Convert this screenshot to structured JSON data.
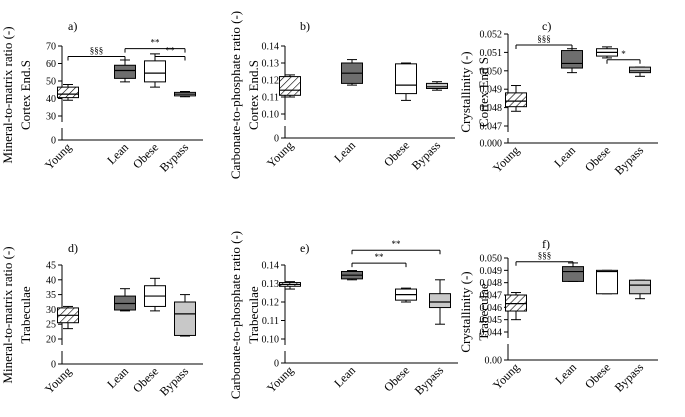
{
  "chart_data": [
    {
      "panel": "a)",
      "type": "boxplot",
      "ylabel": [
        "Mineral-to-matrix ratio (-)",
        "Cortex End.S"
      ],
      "categories": [
        "Young",
        "Lean",
        "Obese",
        "Bypass"
      ],
      "ylim": [
        0,
        70
      ],
      "break": [
        0,
        30
      ],
      "yticks": [
        0,
        30,
        40,
        50,
        60,
        70
      ],
      "yticklabels": [
        "0",
        "30",
        "40",
        "50",
        "60",
        "70"
      ],
      "boxes": [
        {
          "min": 39,
          "q1": 40.5,
          "median": 42.5,
          "q3": 46.5,
          "max": 48,
          "fill": "hatch"
        },
        {
          "min": 49.5,
          "q1": 51.5,
          "median": 56,
          "q3": 59,
          "max": 62,
          "fill": "dark"
        },
        {
          "min": 46.5,
          "q1": 49.5,
          "median": 54.5,
          "q3": 61.5,
          "max": 65.5,
          "fill": "white"
        },
        {
          "min": 41,
          "q1": 41.5,
          "median": 42.5,
          "q3": 43.5,
          "max": 44,
          "fill": "light"
        }
      ],
      "brackets": [
        {
          "from": 0,
          "to": 1,
          "label": "§§§",
          "at": 64
        },
        {
          "from": 1,
          "to": 3,
          "label": "**",
          "at": 68.5
        },
        {
          "from": 2,
          "to": 3,
          "label": "**",
          "at": 64
        }
      ]
    },
    {
      "panel": "b)",
      "type": "boxplot",
      "ylabel": [
        "Carbonate-to-phosphate ratio (-)",
        "Cortex End.S"
      ],
      "categories": [
        "Young",
        "Lean",
        "Obese",
        "Bypass"
      ],
      "ylim": [
        0,
        0.14
      ],
      "break": [
        0,
        0.1
      ],
      "yticks": [
        0,
        0.1,
        0.11,
        0.12,
        0.13,
        0.14
      ],
      "yticklabels": [
        "0",
        "0.10",
        "0.11",
        "0.12",
        "0.13",
        "0.14"
      ],
      "boxes": [
        {
          "min": 0.11,
          "q1": 0.111,
          "median": 0.114,
          "q3": 0.122,
          "max": 0.123,
          "fill": "hatch"
        },
        {
          "min": 0.117,
          "q1": 0.118,
          "median": 0.124,
          "q3": 0.13,
          "max": 0.132,
          "fill": "dark"
        },
        {
          "min": 0.108,
          "q1": 0.112,
          "median": 0.117,
          "q3": 0.1295,
          "max": 0.13,
          "fill": "white"
        },
        {
          "min": 0.114,
          "q1": 0.115,
          "median": 0.116,
          "q3": 0.118,
          "max": 0.119,
          "fill": "light"
        }
      ],
      "brackets": []
    },
    {
      "panel": "c)",
      "type": "boxplot",
      "ylabel": [
        "Crystallinity (-)",
        "Cortex End S"
      ],
      "categories": [
        "Young",
        "Lean",
        "Obese",
        "Bypass"
      ],
      "ylim": [
        0,
        0.052
      ],
      "break": [
        0,
        0.047
      ],
      "yticks": [
        0,
        0.047,
        0.048,
        0.049,
        0.05,
        0.051,
        0.052
      ],
      "yticklabels": [
        "0.000",
        "0.047",
        "0.048",
        "0.049",
        "0.050",
        "0.051",
        "0.052"
      ],
      "boxes": [
        {
          "min": 0.0478,
          "q1": 0.04805,
          "median": 0.04835,
          "q3": 0.0488,
          "max": 0.0492,
          "fill": "hatch"
        },
        {
          "min": 0.0499,
          "q1": 0.05015,
          "median": 0.0504,
          "q3": 0.0511,
          "max": 0.0512,
          "fill": "dark"
        },
        {
          "min": 0.0507,
          "q1": 0.0508,
          "median": 0.051,
          "q3": 0.0512,
          "max": 0.0513,
          "fill": "white"
        },
        {
          "min": 0.0497,
          "q1": 0.0499,
          "median": 0.05,
          "q3": 0.0502,
          "max": 0.0502,
          "fill": "light"
        }
      ],
      "brackets": [
        {
          "from": 0,
          "to": 1,
          "label": "§§§",
          "at": 0.0514
        },
        {
          "from": 2,
          "to": 3,
          "label": "*",
          "at": 0.0506
        }
      ]
    },
    {
      "panel": "d)",
      "type": "boxplot",
      "ylabel": [
        "Mineral-to-matrix ratio (-)",
        "Trabeculae"
      ],
      "categories": [
        "Young",
        "Lean",
        "Obese",
        "Bypass"
      ],
      "ylim": [
        0,
        45
      ],
      "break": [
        0,
        20
      ],
      "yticks": [
        0,
        20,
        25,
        30,
        35,
        40,
        45
      ],
      "yticklabels": [
        "0",
        "20",
        "25",
        "30",
        "35",
        "40",
        "45"
      ],
      "boxes": [
        {
          "min": 23.5,
          "q1": 25.5,
          "median": 28,
          "q3": 30.5,
          "max": 31,
          "fill": "hatch"
        },
        {
          "min": 29.5,
          "q1": 29.8,
          "median": 32,
          "q3": 34.5,
          "max": 37,
          "fill": "dark"
        },
        {
          "min": 29.5,
          "q1": 31,
          "median": 34.5,
          "q3": 38,
          "max": 40.5,
          "fill": "white"
        },
        {
          "min": 21,
          "q1": 21.2,
          "median": 28.5,
          "q3": 32.5,
          "max": 35,
          "fill": "light"
        }
      ],
      "brackets": []
    },
    {
      "panel": "e)",
      "type": "boxplot",
      "ylabel": [
        "Carbonate-to-phosphate ratio (-)",
        "Trabeculae"
      ],
      "categories": [
        "Young",
        "Lean",
        "Obese",
        "Bypass"
      ],
      "ylim": [
        0,
        0.14
      ],
      "break": [
        0,
        0.1
      ],
      "yticks": [
        0,
        0.1,
        0.11,
        0.12,
        0.13,
        0.14
      ],
      "yticklabels": [
        "0",
        "0.10",
        "0.11",
        "0.12",
        "0.13",
        "0.14"
      ],
      "boxes": [
        {
          "min": 0.127,
          "q1": 0.1285,
          "median": 0.1295,
          "q3": 0.1305,
          "max": 0.131,
          "fill": "hatch"
        },
        {
          "min": 0.132,
          "q1": 0.1325,
          "median": 0.1345,
          "q3": 0.1365,
          "max": 0.137,
          "fill": "dark"
        },
        {
          "min": 0.12,
          "q1": 0.121,
          "median": 0.124,
          "q3": 0.127,
          "max": 0.1275,
          "fill": "white"
        },
        {
          "min": 0.108,
          "q1": 0.117,
          "median": 0.12,
          "q3": 0.1245,
          "max": 0.132,
          "fill": "light"
        }
      ],
      "brackets": [
        {
          "from": 1,
          "to": 2,
          "label": "**",
          "at": 0.141
        },
        {
          "from": 1,
          "to": 3,
          "label": "**",
          "at": 0.148
        }
      ]
    },
    {
      "panel": "f)",
      "type": "boxplot",
      "ylabel": [
        "Crystallinity (-)",
        "Trabeculae"
      ],
      "categories": [
        "Young",
        "Lean",
        "Obese",
        "Bypass"
      ],
      "ylim": [
        0,
        0.05
      ],
      "break": [
        0,
        0.044
      ],
      "yticks": [
        0,
        0.044,
        0.045,
        0.046,
        0.047,
        0.048,
        0.049,
        0.05
      ],
      "yticklabels": [
        "0.00",
        "0.044",
        "0.045",
        "0.046",
        "0.047",
        "0.048",
        "0.049",
        "0.050"
      ],
      "boxes": [
        {
          "min": 0.045,
          "q1": 0.0457,
          "median": 0.0463,
          "q3": 0.047,
          "max": 0.0472,
          "fill": "hatch"
        },
        {
          "min": 0.0481,
          "q1": 0.0481,
          "median": 0.0489,
          "q3": 0.0493,
          "max": 0.0496,
          "fill": "dark"
        },
        {
          "min": 0.0471,
          "q1": 0.0471,
          "median": 0.0489,
          "q3": 0.049,
          "max": 0.049,
          "fill": "white"
        },
        {
          "min": 0.0467,
          "q1": 0.0471,
          "median": 0.0478,
          "q3": 0.0482,
          "max": 0.0482,
          "fill": "light"
        }
      ],
      "brackets": [
        {
          "from": 0,
          "to": 1,
          "label": "§§§",
          "at": 0.0497
        }
      ]
    }
  ],
  "colors": {
    "axis": "#000000",
    "dark": "#6e6e6e",
    "light": "#c8c8c8",
    "white": "#ffffff",
    "hatch": "#000000"
  }
}
